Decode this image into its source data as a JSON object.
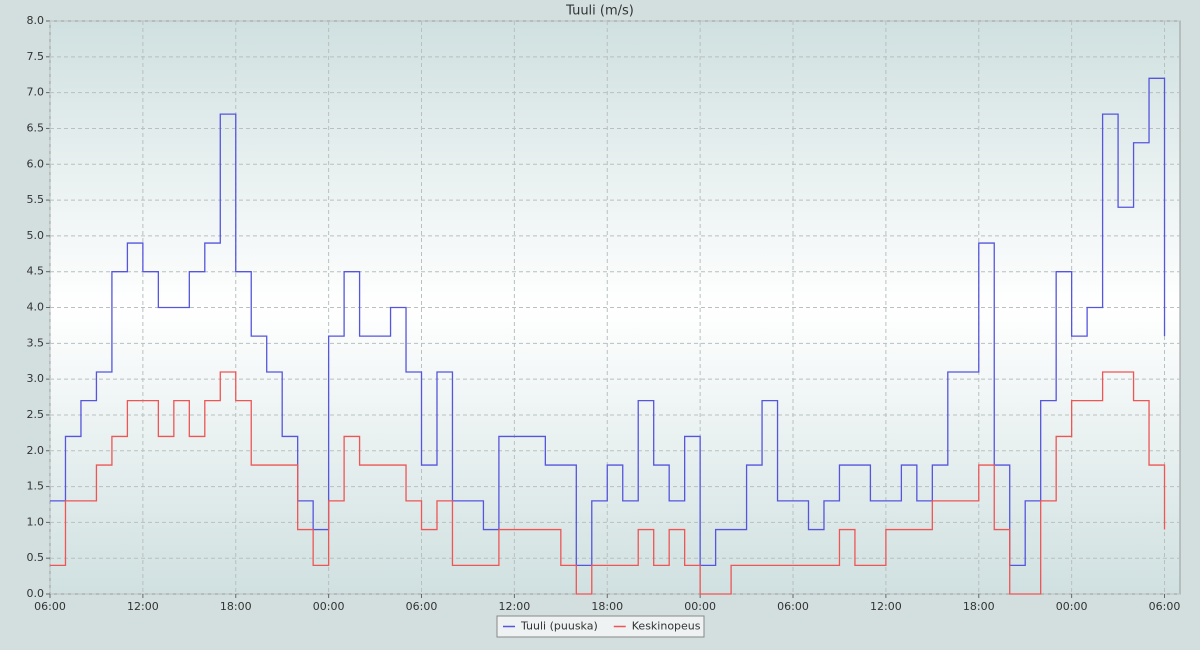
{
  "chart_data": {
    "type": "line",
    "title": "Tuuli (m/s)",
    "x": [
      0,
      1,
      2,
      3,
      4,
      5,
      6,
      7,
      8,
      9,
      10,
      11,
      12,
      13,
      14,
      15,
      16,
      17,
      18,
      19,
      20,
      21,
      22,
      23,
      24,
      25,
      26,
      27,
      28,
      29,
      30,
      31,
      32,
      33,
      34,
      35,
      36,
      37,
      38,
      39,
      40,
      41,
      42,
      43,
      44,
      45,
      46,
      47,
      48,
      49,
      50,
      51,
      52,
      53,
      54,
      55,
      56,
      57,
      58,
      59,
      60,
      61,
      62,
      63,
      64,
      65,
      66,
      67,
      68,
      69,
      70,
      71,
      72
    ],
    "series": [
      {
        "name": "Tuuli (puuska)",
        "color": "#5555dd",
        "values": [
          1.3,
          2.2,
          2.7,
          3.1,
          4.5,
          4.9,
          4.5,
          4.0,
          4.0,
          4.5,
          4.9,
          6.7,
          4.5,
          3.6,
          3.1,
          2.2,
          1.3,
          0.9,
          3.6,
          4.5,
          3.6,
          3.6,
          4.0,
          3.1,
          1.8,
          3.1,
          1.3,
          1.3,
          0.9,
          2.2,
          2.2,
          2.2,
          1.8,
          1.8,
          0.4,
          1.3,
          1.8,
          1.3,
          2.7,
          1.8,
          1.3,
          2.2,
          0.4,
          0.9,
          0.9,
          1.8,
          2.7,
          1.3,
          1.3,
          0.9,
          1.3,
          1.8,
          1.8,
          1.3,
          1.3,
          1.8,
          1.3,
          1.8,
          3.1,
          3.1,
          4.9,
          1.8,
          0.4,
          1.3,
          2.7,
          4.5,
          3.6,
          4.0,
          6.7,
          5.4,
          6.3,
          7.2,
          3.6
        ]
      },
      {
        "name": "Keskinopeus",
        "color": "#ee5555",
        "values": [
          0.4,
          1.3,
          1.3,
          1.8,
          2.2,
          2.7,
          2.7,
          2.2,
          2.7,
          2.2,
          2.7,
          3.1,
          2.7,
          1.8,
          1.8,
          1.8,
          0.9,
          0.4,
          1.3,
          2.2,
          1.8,
          1.8,
          1.8,
          1.3,
          0.9,
          1.3,
          0.4,
          0.4,
          0.4,
          0.9,
          0.9,
          0.9,
          0.9,
          0.4,
          0,
          0.4,
          0.4,
          0.4,
          0.9,
          0.4,
          0.9,
          0.4,
          0,
          0,
          0.4,
          0.4,
          0.4,
          0.4,
          0.4,
          0.4,
          0.4,
          0.9,
          0.4,
          0.4,
          0.9,
          0.9,
          0.9,
          1.3,
          1.3,
          1.3,
          1.8,
          0.9,
          0,
          0,
          1.3,
          2.2,
          2.7,
          2.7,
          3.1,
          3.1,
          2.7,
          1.8,
          0.9
        ]
      }
    ],
    "xlim": [
      0,
      73
    ],
    "xticks": [
      {
        "value": 0,
        "label": "06:00"
      },
      {
        "value": 6,
        "label": "12:00"
      },
      {
        "value": 12,
        "label": "18:00"
      },
      {
        "value": 18,
        "label": "00:00"
      },
      {
        "value": 24,
        "label": "06:00"
      },
      {
        "value": 30,
        "label": "12:00"
      },
      {
        "value": 36,
        "label": "18:00"
      },
      {
        "value": 42,
        "label": "00:00"
      },
      {
        "value": 48,
        "label": "06:00"
      },
      {
        "value": 54,
        "label": "12:00"
      },
      {
        "value": 60,
        "label": "18:00"
      },
      {
        "value": 66,
        "label": "00:00"
      },
      {
        "value": 72,
        "label": "06:00"
      }
    ],
    "ylim": [
      0,
      8
    ],
    "yticks": [
      {
        "value": 0,
        "label": "0.0"
      },
      {
        "value": 0.5,
        "label": "0.5"
      },
      {
        "value": 1,
        "label": "1.0"
      },
      {
        "value": 1.5,
        "label": "1.5"
      },
      {
        "value": 2,
        "label": "2.0"
      },
      {
        "value": 2.5,
        "label": "2.5"
      },
      {
        "value": 3,
        "label": "3.0"
      },
      {
        "value": 3.5,
        "label": "3.5"
      },
      {
        "value": 4,
        "label": "4.0"
      },
      {
        "value": 4.5,
        "label": "4.5"
      },
      {
        "value": 5,
        "label": "5.0"
      },
      {
        "value": 5.5,
        "label": "5.5"
      },
      {
        "value": 6,
        "label": "6.0"
      },
      {
        "value": 6.5,
        "label": "6.5"
      },
      {
        "value": 7,
        "label": "7.0"
      },
      {
        "value": 7.5,
        "label": "7.5"
      },
      {
        "value": 8,
        "label": "8.0"
      }
    ],
    "grid": true,
    "step": true,
    "legend": "bottom"
  }
}
